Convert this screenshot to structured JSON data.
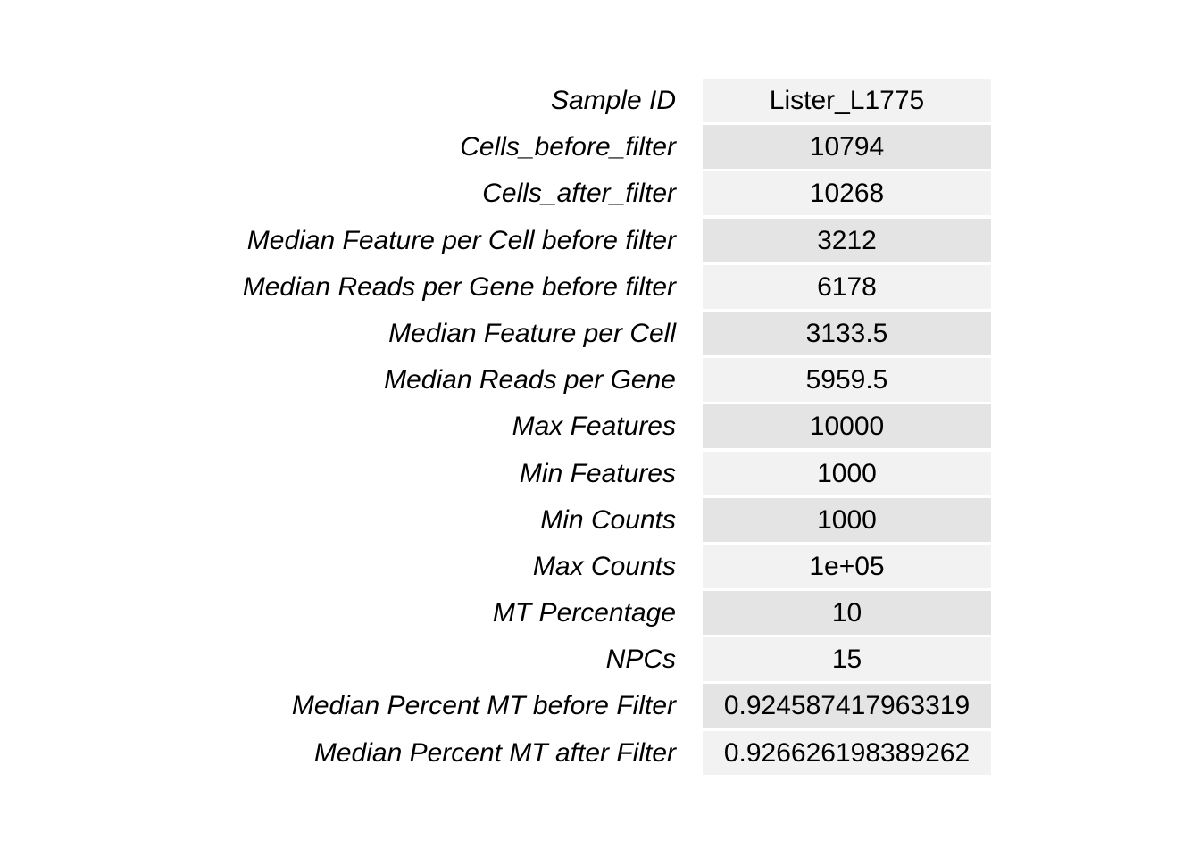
{
  "table": {
    "colors": {
      "row_light": "#f2f2f2",
      "row_dark": "#e4e4e4"
    },
    "rows": [
      {
        "label": "Sample ID",
        "value": "Lister_L1775"
      },
      {
        "label": "Cells_before_filter",
        "value": "10794"
      },
      {
        "label": "Cells_after_filter",
        "value": "10268"
      },
      {
        "label": "Median Feature per Cell before filter",
        "value": "3212"
      },
      {
        "label": "Median Reads per Gene before filter",
        "value": "6178"
      },
      {
        "label": "Median Feature per Cell",
        "value": "3133.5"
      },
      {
        "label": "Median Reads per Gene",
        "value": "5959.5"
      },
      {
        "label": "Max Features",
        "value": "10000"
      },
      {
        "label": "Min Features",
        "value": "1000"
      },
      {
        "label": "Min Counts",
        "value": "1000"
      },
      {
        "label": "Max Counts",
        "value": "1e+05"
      },
      {
        "label": "MT Percentage",
        "value": "10"
      },
      {
        "label": "NPCs",
        "value": "15"
      },
      {
        "label": "Median Percent MT before Filter",
        "value": "0.924587417963319"
      },
      {
        "label": "Median Percent MT after Filter",
        "value": "0.926626198389262"
      }
    ]
  }
}
